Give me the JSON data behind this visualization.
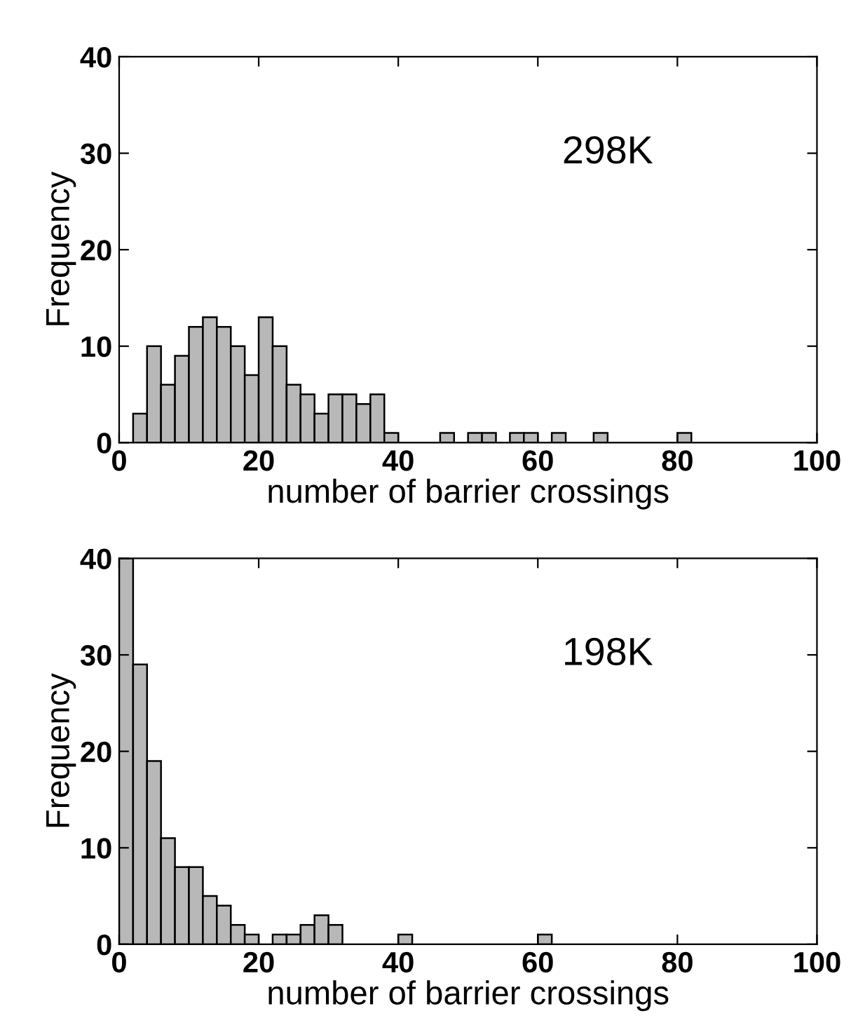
{
  "chart_data": [
    {
      "type": "histogram",
      "ylabel": "Frequency",
      "xlabel": "number of barrier crossings",
      "annotations": [
        "298K"
      ],
      "color": "#b8b8b8",
      "bins": [
        0,
        2,
        4,
        6,
        8,
        10,
        12,
        14,
        16,
        18,
        20,
        22,
        24,
        26,
        28,
        30,
        32,
        34,
        36,
        38,
        40,
        42,
        44,
        46,
        48,
        50,
        52,
        54,
        56,
        58,
        60,
        62,
        64,
        66,
        68,
        70,
        72,
        74,
        76,
        78,
        80,
        82,
        84,
        86,
        88,
        90,
        92,
        94,
        96,
        98,
        100
      ],
      "values": [
        0,
        3,
        10,
        6,
        9,
        12,
        13,
        12,
        10,
        7,
        13,
        10,
        6,
        5,
        3,
        5,
        5,
        4,
        5,
        1,
        0,
        0,
        0,
        1,
        0,
        1,
        1,
        0,
        1,
        1,
        0,
        1,
        0,
        0,
        1,
        0,
        0,
        0,
        0,
        0,
        1,
        0,
        0,
        0,
        0,
        0,
        0,
        0,
        0,
        0
      ],
      "xlim": [
        0,
        100
      ],
      "xticks": [
        0,
        20,
        40,
        60,
        80,
        100
      ],
      "ylim": [
        0,
        40
      ],
      "yticks": [
        0,
        10,
        20,
        30,
        40
      ],
      "grid": false,
      "legend": false
    },
    {
      "type": "histogram",
      "ylabel": "Frequency",
      "xlabel": "number of barrier crossings",
      "annotations": [
        "198K"
      ],
      "color": "#b8b8b8",
      "bins": [
        0,
        2,
        4,
        6,
        8,
        10,
        12,
        14,
        16,
        18,
        20,
        22,
        24,
        26,
        28,
        30,
        32,
        34,
        36,
        38,
        40,
        42,
        44,
        46,
        48,
        50,
        52,
        54,
        56,
        58,
        60,
        62,
        64,
        66,
        68,
        70,
        72,
        74,
        76,
        78,
        80,
        82,
        84,
        86,
        88,
        90,
        92,
        94,
        96,
        98,
        100
      ],
      "values": [
        40,
        29,
        19,
        11,
        8,
        8,
        5,
        4,
        2,
        1,
        0,
        1,
        1,
        2,
        3,
        2,
        0,
        0,
        0,
        0,
        1,
        0,
        0,
        0,
        0,
        0,
        0,
        0,
        0,
        0,
        1,
        0,
        0,
        0,
        0,
        0,
        0,
        0,
        0,
        0,
        0,
        0,
        0,
        0,
        0,
        0,
        0,
        0,
        0,
        0
      ],
      "xlim": [
        0,
        100
      ],
      "xticks": [
        0,
        20,
        40,
        60,
        80,
        100
      ],
      "ylim": [
        0,
        40
      ],
      "yticks": [
        0,
        10,
        20,
        30,
        40
      ],
      "grid": false,
      "legend": false
    }
  ]
}
